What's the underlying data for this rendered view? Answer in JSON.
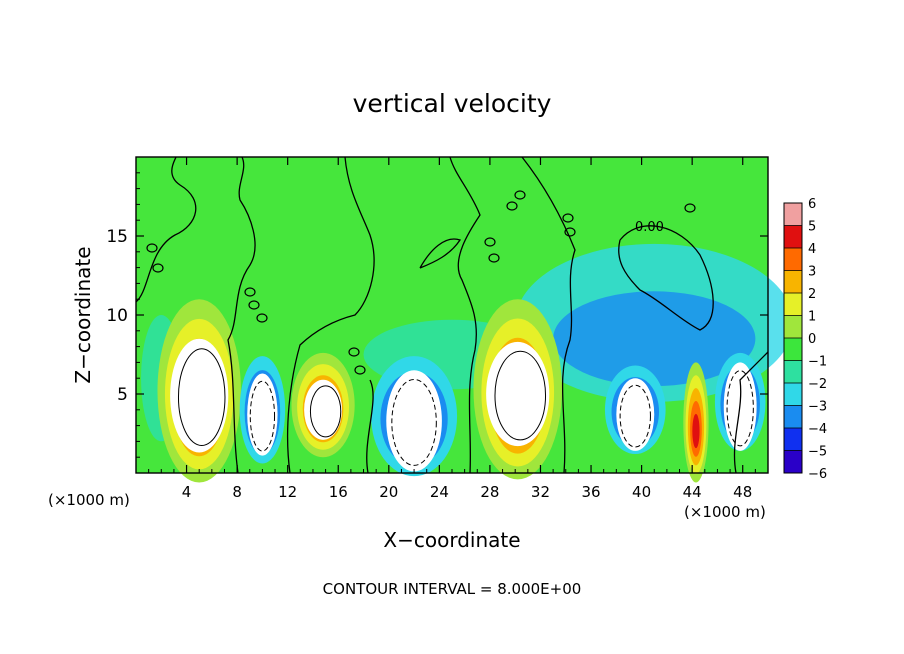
{
  "chart_data": {
    "type": "heatmap",
    "title": "vertical velocity",
    "xlabel": "X−coordinate",
    "ylabel": "Z−coordinate",
    "x_unit_left": "(×1000 m)",
    "x_unit_right": "(×1000 m)",
    "xlim": [
      0,
      50
    ],
    "ylim": [
      0,
      20
    ],
    "xticks": [
      4,
      8,
      12,
      16,
      20,
      24,
      28,
      32,
      36,
      40,
      44,
      48
    ],
    "yticks": [
      5,
      10,
      15
    ],
    "footer": "CONTOUR INTERVAL = 8.000E+00",
    "contour_label": "0.00",
    "colorbar": {
      "min": -6,
      "max": 6,
      "tick_values": [
        6,
        5,
        4,
        3,
        2,
        1,
        0,
        -1,
        -2,
        -3,
        -4,
        -5,
        -6
      ],
      "tick_labels": [
        "6",
        "5",
        "4",
        "3",
        "2",
        "1",
        "0",
        "−1",
        "−2",
        "−3",
        "−4",
        "−5",
        "−6"
      ],
      "colors": [
        "#7a1fa0",
        "#2a00c8",
        "#1030f0",
        "#1a8cf0",
        "#30d8e8",
        "#2ee0a0",
        "#3ce63c",
        "#a0e63c",
        "#e6f028",
        "#f8b400",
        "#ff6a00",
        "#e01010",
        "#f0a0a0"
      ]
    },
    "features": [
      {
        "kind": "updraft",
        "x_center": 5.0,
        "z_center": 5.2,
        "x_halfwidth": 3.3,
        "z_top": 11.0,
        "core_halfwidth": 2.3,
        "core_top": 8.8
      },
      {
        "kind": "updraft",
        "x_center": 14.8,
        "z_center": 4.3,
        "x_halfwidth": 2.5,
        "z_top": 7.6,
        "core_halfwidth": 1.5,
        "core_top": 6.2
      },
      {
        "kind": "updraft",
        "x_center": 30.2,
        "z_center": 5.3,
        "x_halfwidth": 3.5,
        "z_top": 11.0,
        "core_halfwidth": 2.5,
        "core_top": 8.6
      },
      {
        "kind": "updraft",
        "x_center": 44.3,
        "z_center": 3.2,
        "x_halfwidth": 1.0,
        "z_top": 7.0,
        "core_halfwidth": 0,
        "core_top": 0
      },
      {
        "kind": "downdraft",
        "x_center": 10.0,
        "z_center": 4.0,
        "x_halfwidth": 1.8,
        "z_top": 7.4,
        "core_halfwidth": 1.2,
        "core_top": 6.6
      },
      {
        "kind": "downdraft",
        "x_center": 22.0,
        "z_center": 3.6,
        "x_halfwidth": 3.4,
        "z_top": 7.4,
        "core_halfwidth": 2.2,
        "core_top": 6.8
      },
      {
        "kind": "downdraft",
        "x_center": 39.5,
        "z_center": 4.0,
        "x_halfwidth": 2.4,
        "z_top": 6.8,
        "core_halfwidth": 1.5,
        "core_top": 6.3
      },
      {
        "kind": "downdraft",
        "x_center": 47.8,
        "z_center": 4.5,
        "x_halfwidth": 2.0,
        "z_top": 7.6,
        "core_halfwidth": 1.3,
        "core_top": 7.3
      }
    ]
  }
}
